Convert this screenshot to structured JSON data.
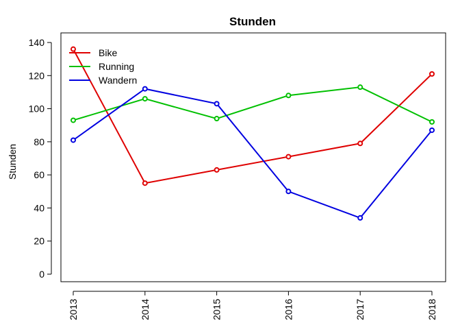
{
  "chart_data": {
    "type": "line",
    "title": "Stunden",
    "xlabel": "",
    "ylabel": "Stunden",
    "x": [
      "2013",
      "2014",
      "2015",
      "2016",
      "2017",
      "2018"
    ],
    "ylim": [
      0,
      140
    ],
    "yticks": [
      "0",
      "20",
      "40",
      "60",
      "80",
      "100",
      "120",
      "140"
    ],
    "grid": false,
    "legend_position": "top-left",
    "series": [
      {
        "name": "Bike",
        "color": "#DF0000",
        "values": [
          136,
          55,
          63,
          71,
          79,
          121
        ]
      },
      {
        "name": "Running",
        "color": "#00C000",
        "values": [
          93,
          106,
          94,
          108,
          113,
          92
        ]
      },
      {
        "name": "Wandern",
        "color": "#0000E0",
        "values": [
          81,
          112,
          103,
          50,
          34,
          87
        ]
      }
    ]
  }
}
